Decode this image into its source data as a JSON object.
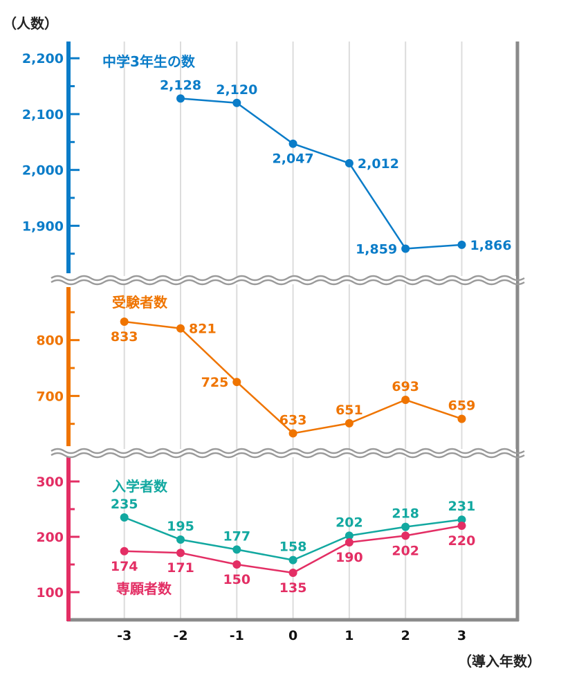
{
  "chart_data": {
    "type": "line",
    "y_unit_label": "（人数）",
    "x_unit_label": "（導入年数）",
    "x": [
      -3,
      -2,
      -1,
      0,
      1,
      2,
      3
    ],
    "x_tick_labels": [
      "-3",
      "-2",
      "-1",
      "0",
      "1",
      "2",
      "3"
    ],
    "grid": "vertical",
    "broken_axis": true,
    "panels": [
      {
        "id": "top",
        "ylim": [
          1815,
          2230
        ],
        "y_ticks": [
          1900,
          2000,
          2100,
          2200
        ],
        "y_tick_labels": [
          "1,900",
          "2,000",
          "2,100",
          "2,200"
        ],
        "minor_ticks": [
          1850,
          1950,
          2050,
          2150
        ],
        "axis_color": "#0a7cc8",
        "series": [
          {
            "name": "中学3年生の数",
            "color": "#0a7cc8",
            "x": [
              -2,
              -1,
              0,
              1,
              2,
              3
            ],
            "values": [
              2128,
              2120,
              2047,
              2012,
              1859,
              1866
            ],
            "labels": [
              "2,128",
              "2,120",
              "2,047",
              "2,012",
              "1,859",
              "1,866"
            ],
            "label_pos": [
              "above",
              "above",
              "below",
              "right",
              "left",
              "right"
            ]
          }
        ]
      },
      {
        "id": "middle",
        "ylim": [
          610,
          895
        ],
        "y_ticks": [
          700,
          800
        ],
        "y_tick_labels": [
          "700",
          "800"
        ],
        "minor_ticks": [
          650,
          750,
          850
        ],
        "axis_color": "#ef7400",
        "series": [
          {
            "name": "受験者数",
            "color": "#ef7400",
            "x": [
              -3,
              -2,
              -1,
              0,
              1,
              2,
              3
            ],
            "values": [
              833,
              821,
              725,
              633,
              651,
              693,
              659
            ],
            "labels": [
              "833",
              "821",
              "725",
              "633",
              "651",
              "693",
              "659"
            ],
            "label_pos": [
              "below",
              "right",
              "left",
              "above",
              "above",
              "above",
              "above"
            ]
          }
        ]
      },
      {
        "id": "bottom",
        "ylim": [
          50,
          345
        ],
        "y_ticks": [
          100,
          200,
          300
        ],
        "y_tick_labels": [
          "100",
          "200",
          "300"
        ],
        "minor_ticks": [
          150,
          250
        ],
        "axis_color": "#e32e64",
        "series": [
          {
            "name": "入学者数",
            "color": "#12a8a0",
            "x": [
              -3,
              -2,
              -1,
              0,
              1,
              2,
              3
            ],
            "values": [
              235,
              195,
              177,
              158,
              202,
              218,
              231
            ],
            "labels": [
              "235",
              "195",
              "177",
              "158",
              "202",
              "218",
              "231"
            ],
            "label_pos": [
              "above",
              "above",
              "above",
              "above",
              "above",
              "above",
              "above"
            ]
          },
          {
            "name": "専願者数",
            "color": "#e32e64",
            "x": [
              -3,
              -2,
              -1,
              0,
              1,
              2,
              3
            ],
            "values": [
              174,
              171,
              150,
              135,
              190,
              202,
              220
            ],
            "labels": [
              "174",
              "171",
              "150",
              "135",
              "190",
              "202",
              "220"
            ],
            "label_pos": [
              "below",
              "below",
              "below",
              "below",
              "below",
              "below",
              "below"
            ]
          }
        ]
      }
    ]
  }
}
